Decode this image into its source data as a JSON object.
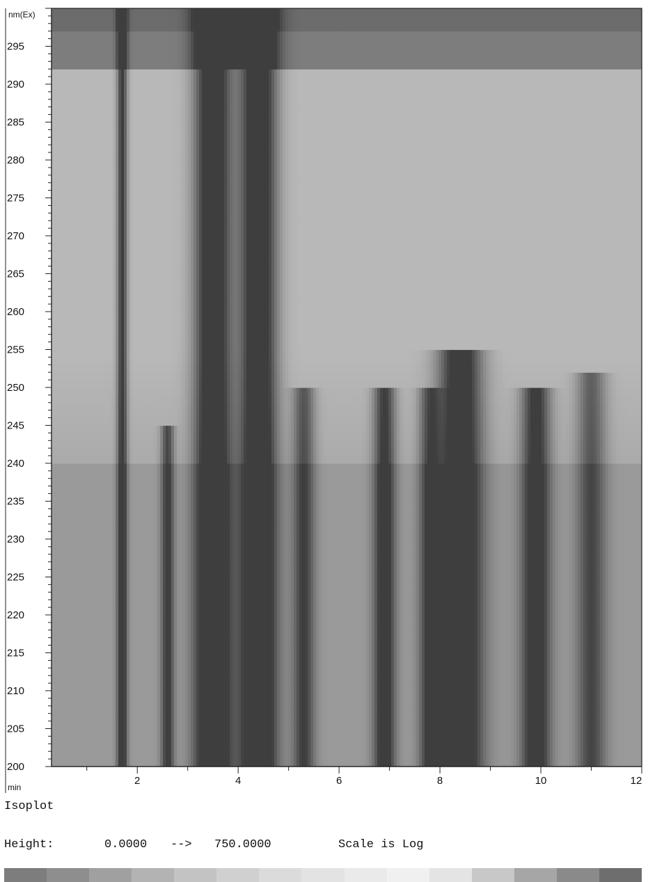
{
  "chart_data": {
    "type": "heatmap",
    "plot_title": "Isoplot",
    "xlabel": "min",
    "ylabel": "nm(Ex)",
    "xlim": [
      0.3,
      12
    ],
    "ylim": [
      200,
      300
    ],
    "x_tick_labels": [
      "2",
      "4",
      "6",
      "8",
      "10",
      "12"
    ],
    "y_tick_labels": [
      "200",
      "205",
      "210",
      "215",
      "220",
      "225",
      "230",
      "235",
      "240",
      "245",
      "250",
      "255",
      "260",
      "265",
      "270",
      "275",
      "280",
      "285",
      "290",
      "295"
    ],
    "height_label": "Height:",
    "height_min": "0.0000",
    "height_arrow": "-->",
    "height_max": "750.0000",
    "scale_text": "Scale is Log",
    "colorbar_levels": [
      "#7d7d7d",
      "#8e8e8e",
      "#a0a0a0",
      "#b3b3b3",
      "#c3c3c3",
      "#d0d0d0",
      "#dbdbdb",
      "#e3e3e3",
      "#eaeaea",
      "#f0f0f0",
      "#e4e4e4",
      "#c8c8c8",
      "#a6a6a6",
      "#8a8a8a",
      "#6e6e6e"
    ],
    "peaks": [
      {
        "rt": 1.7,
        "width": 0.07,
        "intensity": 0.75,
        "ex_min": 200,
        "ex_max": 300
      },
      {
        "rt": 2.6,
        "width": 0.09,
        "intensity": 0.6,
        "ex_min": 200,
        "ex_max": 245
      },
      {
        "rt": 3.5,
        "width": 0.25,
        "intensity": 1.0,
        "ex_min": 200,
        "ex_max": 300
      },
      {
        "rt": 4.4,
        "width": 0.25,
        "intensity": 1.0,
        "ex_min": 200,
        "ex_max": 300
      },
      {
        "rt": 5.3,
        "width": 0.15,
        "intensity": 0.55,
        "ex_min": 200,
        "ex_max": 250
      },
      {
        "rt": 6.9,
        "width": 0.15,
        "intensity": 0.7,
        "ex_min": 200,
        "ex_max": 250
      },
      {
        "rt": 7.8,
        "width": 0.15,
        "intensity": 0.55,
        "ex_min": 200,
        "ex_max": 250
      },
      {
        "rt": 8.4,
        "width": 0.3,
        "intensity": 0.9,
        "ex_min": 200,
        "ex_max": 255
      },
      {
        "rt": 9.9,
        "width": 0.2,
        "intensity": 0.75,
        "ex_min": 200,
        "ex_max": 250
      },
      {
        "rt": 11.0,
        "width": 0.2,
        "intensity": 0.5,
        "ex_min": 200,
        "ex_max": 252
      }
    ]
  }
}
